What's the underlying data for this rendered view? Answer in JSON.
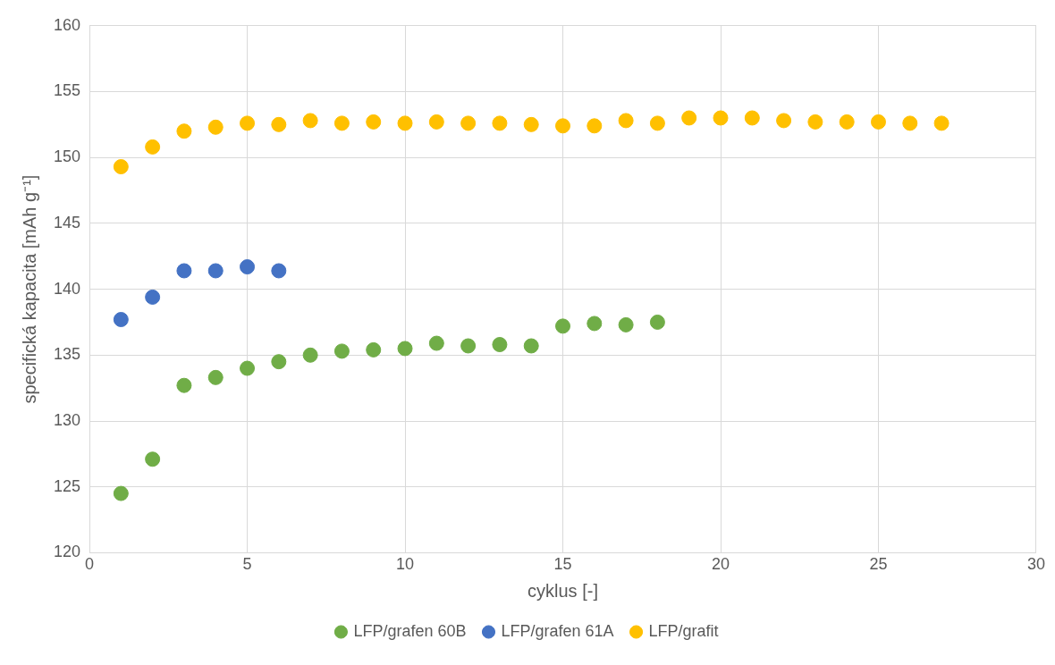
{
  "chart_data": {
    "type": "scatter",
    "xlabel": "cyklus [-]",
    "ylabel": "specifická kapacita [mAh g⁻¹]",
    "xlim": [
      0,
      30
    ],
    "xticks": [
      0,
      5,
      10,
      15,
      20,
      25,
      30
    ],
    "ylim": [
      120,
      160
    ],
    "yticks": [
      120,
      125,
      130,
      135,
      140,
      145,
      150,
      155,
      160
    ],
    "grid": true,
    "legend": "bottom",
    "marker": "circle",
    "series": [
      {
        "name": "LFP/grafen 60B",
        "color": "#70ad47",
        "x": [
          1,
          2,
          3,
          4,
          5,
          6,
          7,
          8,
          9,
          10,
          11,
          12,
          13,
          14,
          15,
          16,
          17,
          18
        ],
        "values": [
          124.5,
          127.1,
          132.7,
          133.3,
          134.0,
          134.5,
          135.0,
          135.3,
          135.4,
          135.5,
          135.9,
          135.7,
          135.8,
          135.7,
          137.2,
          137.4,
          137.3,
          137.5
        ]
      },
      {
        "name": "LFP/grafen 61A",
        "color": "#4472c4",
        "x": [
          1,
          2,
          3,
          4,
          5,
          6
        ],
        "values": [
          137.7,
          139.4,
          141.4,
          141.4,
          141.7,
          141.4
        ]
      },
      {
        "name": "LFP/grafit",
        "color": "#ffc000",
        "x": [
          1,
          2,
          3,
          4,
          5,
          6,
          7,
          8,
          9,
          10,
          11,
          12,
          13,
          14,
          15,
          16,
          17,
          18,
          19,
          20,
          21,
          22,
          23,
          24,
          25,
          26,
          27
        ],
        "values": [
          149.3,
          150.8,
          152.0,
          152.3,
          152.6,
          152.5,
          152.8,
          152.6,
          152.7,
          152.6,
          152.7,
          152.6,
          152.6,
          152.5,
          152.4,
          152.4,
          152.8,
          152.6,
          153.0,
          153.0,
          153.0,
          152.8,
          152.7,
          152.7,
          152.7,
          152.6,
          152.6
        ]
      }
    ]
  }
}
